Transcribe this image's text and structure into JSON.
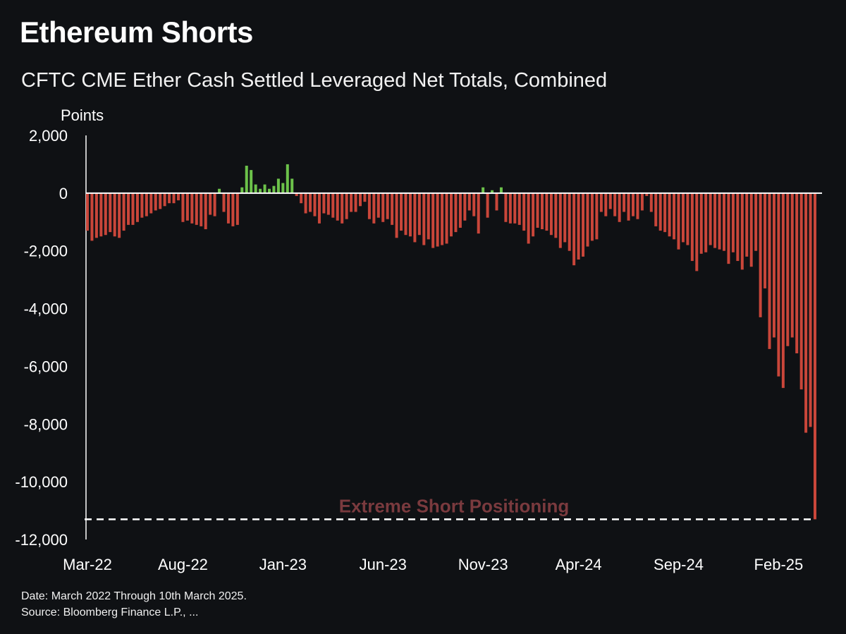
{
  "header": {
    "title": "Ethereum Shorts",
    "subtitle": "CFTC CME Ether Cash Settled Leveraged Net Totals, Combined"
  },
  "footer": {
    "date_note": "Date: March 2022 Through 10th March 2025.",
    "source_note": "Source: Bloomberg Finance L.P., ..."
  },
  "colors": {
    "background": "#0f1114",
    "negative_bar": "#c9463a",
    "positive_bar": "#6cc24a",
    "annotation": "#7a3a3e",
    "reference_line": "#ffffff"
  },
  "chart_data": {
    "type": "bar",
    "title": "Ethereum Shorts",
    "subtitle": "CFTC CME Ether Cash Settled Leveraged Net Totals, Combined",
    "ylabel": "Points",
    "xlabel": "",
    "ylim": [
      -12000,
      2000
    ],
    "yticks": [
      2000,
      0,
      -2000,
      -4000,
      -6000,
      -8000,
      -10000,
      -12000
    ],
    "ytick_labels": [
      "2,000",
      "0",
      "-2,000",
      "-4,000",
      "-6,000",
      "-8,000",
      "-10,000",
      "-12,000"
    ],
    "xtick_labels": [
      "Mar-22",
      "Aug-22",
      "Jan-23",
      "Jun-23",
      "Nov-23",
      "Apr-24",
      "Sep-24",
      "Feb-25"
    ],
    "xtick_indices": [
      0,
      21,
      43,
      65,
      87,
      108,
      130,
      152
    ],
    "grid": false,
    "annotation": {
      "text": "Extreme Short Positioning",
      "reference_value": -11300
    },
    "series": [
      {
        "name": "Leveraged Net Totals",
        "values": [
          -1300,
          -1650,
          -1550,
          -1500,
          -1450,
          -1350,
          -1500,
          -1550,
          -1300,
          -1100,
          -1100,
          -1000,
          -850,
          -800,
          -700,
          -600,
          -550,
          -450,
          -350,
          -350,
          -250,
          -1000,
          -950,
          -1050,
          -1100,
          -1150,
          -1250,
          -750,
          -800,
          150,
          -650,
          -1050,
          -1150,
          -1100,
          200,
          950,
          800,
          300,
          150,
          300,
          150,
          250,
          500,
          350,
          1000,
          500,
          -100,
          -350,
          -700,
          -650,
          -800,
          -1050,
          -700,
          -750,
          -850,
          -950,
          -1050,
          -900,
          -650,
          -650,
          -450,
          -300,
          -900,
          -1050,
          -850,
          -1000,
          -900,
          -1100,
          -1550,
          -1300,
          -1450,
          -1500,
          -1700,
          -1450,
          -1800,
          -1600,
          -1900,
          -1850,
          -1800,
          -1750,
          -1500,
          -1350,
          -1200,
          -950,
          -600,
          -800,
          -1400,
          200,
          -850,
          100,
          -600,
          200,
          -1000,
          -1050,
          -1050,
          -1100,
          -1300,
          -1750,
          -1500,
          -1200,
          -1250,
          -1300,
          -1450,
          -1550,
          -1900,
          -1700,
          -2000,
          -2500,
          -2300,
          -2200,
          -1850,
          -1650,
          -1600,
          -650,
          -800,
          -550,
          -800,
          -1000,
          -650,
          -950,
          -800,
          -900,
          -600,
          -100,
          -650,
          -1150,
          -1300,
          -1350,
          -1500,
          -1600,
          -1950,
          -1700,
          -1800,
          -2350,
          -2700,
          -2100,
          -2050,
          -1800,
          -1900,
          -1950,
          -2000,
          -2450,
          -2050,
          -2350,
          -2650,
          -2200,
          -2550,
          -2000,
          -4300,
          -3300,
          -5400,
          -5000,
          -6350,
          -6750,
          -5300,
          -5000,
          -5550,
          -6800,
          -8300,
          -8100,
          -11300
        ]
      }
    ]
  }
}
